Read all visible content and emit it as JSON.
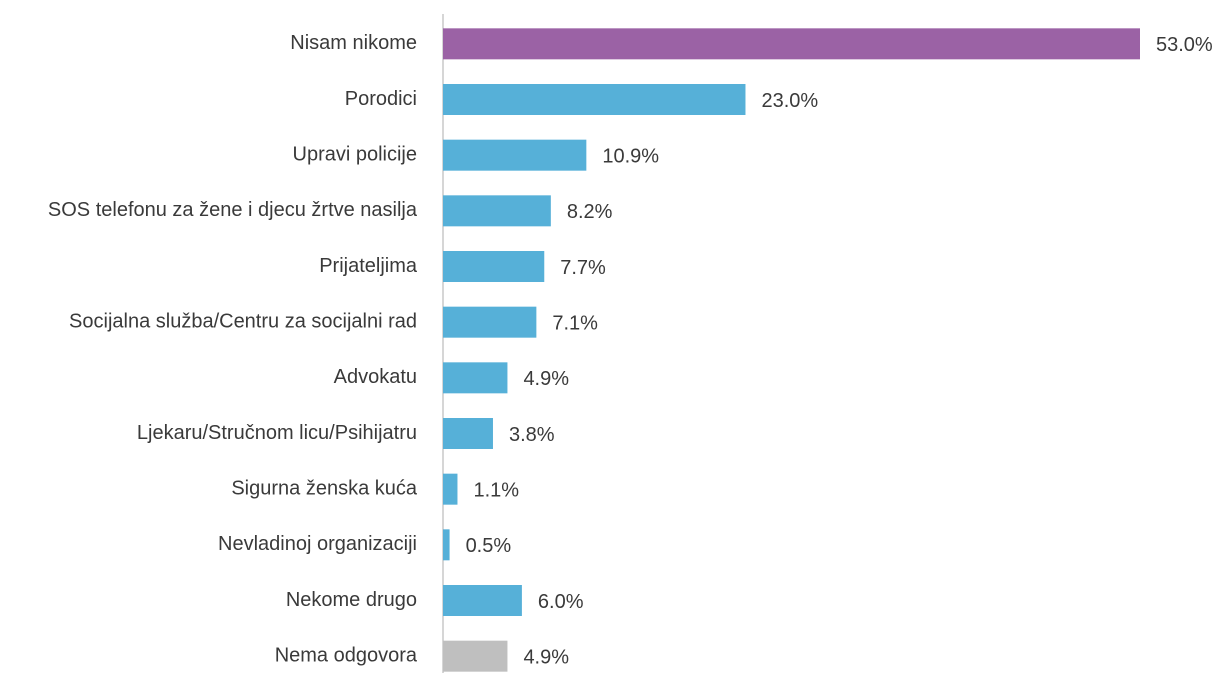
{
  "chart_data": {
    "type": "hbar",
    "categories": [
      "Nisam nikome",
      "Porodici",
      "Upravi policije",
      "SOS telefonu za žene i djecu žrtve nasilja",
      "Prijateljima",
      "Socijalna služba/Centru za socijalni rad",
      "Advokatu",
      "Ljekaru/Stručnom licu/Psihijatru",
      "Sigurna ženska kuća",
      "Nevladinoj organizaciji",
      "Nekome drugo",
      "Nema odgovora"
    ],
    "values": [
      53.0,
      23.0,
      10.9,
      8.2,
      7.7,
      7.1,
      4.9,
      3.8,
      1.1,
      0.5,
      6.0,
      4.9
    ],
    "value_labels": [
      "53.0%",
      "23.0%",
      "10.9%",
      "8.2%",
      "7.7%",
      "7.1%",
      "4.9%",
      "3.8%",
      "1.1%",
      "0.5%",
      "6.0%",
      "4.9%"
    ],
    "colors": [
      "#9b62a5",
      "#56b0d8",
      "#56b0d8",
      "#56b0d8",
      "#56b0d8",
      "#56b0d8",
      "#56b0d8",
      "#56b0d8",
      "#56b0d8",
      "#56b0d8",
      "#56b0d8",
      "#bfbfbf"
    ],
    "xlim": [
      0,
      53
    ]
  }
}
